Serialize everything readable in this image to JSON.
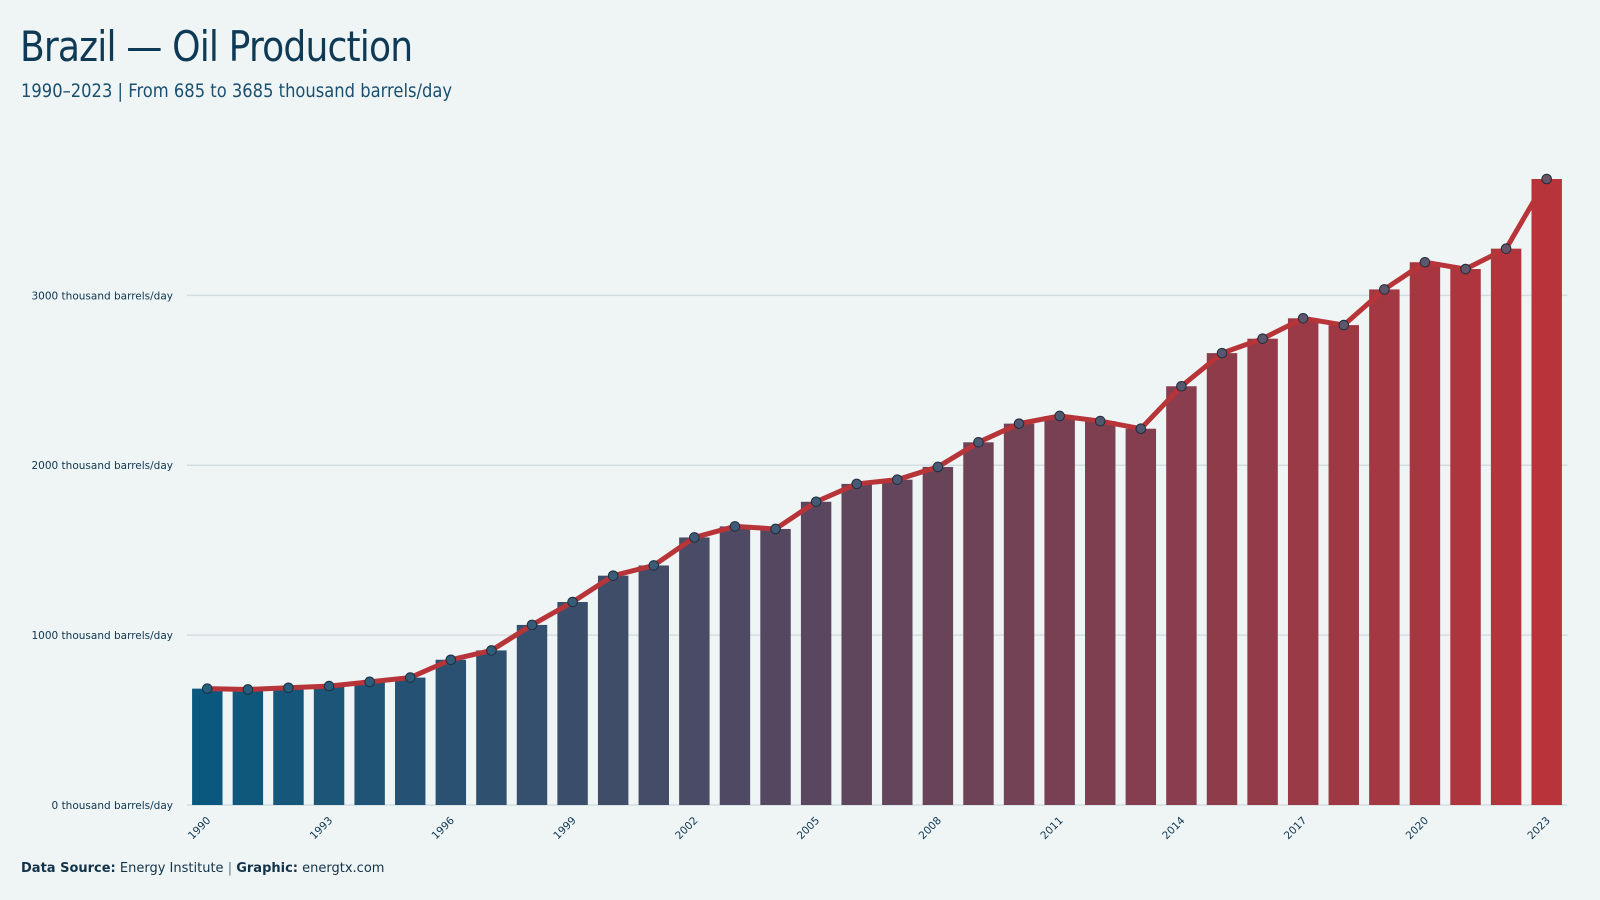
{
  "header": {
    "title": "Brazil — Oil Production",
    "subtitle": "1990–2023 | From 685 to 3685 thousand barrels/day"
  },
  "footer": {
    "source_label": "Data Source:",
    "source_value": "Energy Institute",
    "separator": "|",
    "graphic_label": "Graphic:",
    "graphic_value": "energtx.com"
  },
  "colors": {
    "background": "#eff5f5",
    "bar_start": "#0b587e",
    "bar_end": "#b8333a",
    "line": "#b73439",
    "text": "#0e3550",
    "grid": "#d4dde0"
  },
  "chart_data": {
    "type": "bar",
    "overlay": "line",
    "grid": "horizontal",
    "ylim": [
      0,
      3700
    ],
    "yticks": [
      {
        "value": 0,
        "label": "0 thousand barrels/day"
      },
      {
        "value": 1000,
        "label": "1000 thousand barrels/day"
      },
      {
        "value": 2000,
        "label": "2000 thousand barrels/day"
      },
      {
        "value": 3000,
        "label": "3000 thousand barrels/day"
      }
    ],
    "xtick_labels": [
      "1990",
      "1993",
      "1996",
      "1999",
      "2002",
      "2005",
      "2008",
      "2011",
      "2014",
      "2017",
      "2020",
      "2023"
    ],
    "categories": [
      "1990",
      "1991",
      "1992",
      "1993",
      "1994",
      "1995",
      "1996",
      "1997",
      "1998",
      "1999",
      "2000",
      "2001",
      "2002",
      "2003",
      "2004",
      "2005",
      "2006",
      "2007",
      "2008",
      "2009",
      "2010",
      "2011",
      "2012",
      "2013",
      "2014",
      "2015",
      "2016",
      "2017",
      "2018",
      "2019",
      "2020",
      "2021",
      "2022",
      "2023"
    ],
    "values": [
      685,
      680,
      690,
      700,
      725,
      750,
      855,
      910,
      1060,
      1195,
      1350,
      1410,
      1575,
      1640,
      1625,
      1785,
      1890,
      1915,
      1990,
      2135,
      2245,
      2290,
      2260,
      2215,
      2465,
      2660,
      2745,
      2865,
      2825,
      3035,
      3195,
      3155,
      3275,
      3685
    ]
  }
}
